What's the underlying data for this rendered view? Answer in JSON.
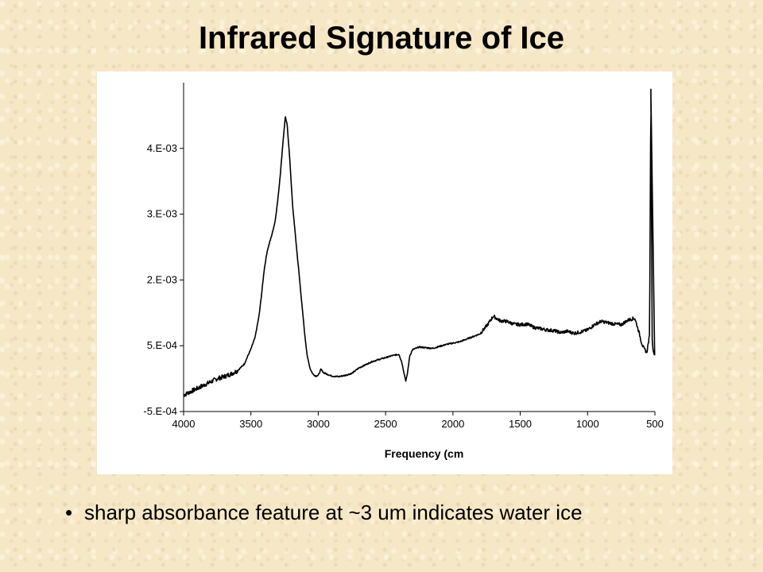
{
  "slide": {
    "title": "Infrared Signature of Ice",
    "bullet_marker": "•",
    "bullet_text": "sharp absorbance feature at ~3 um indicates water ice"
  },
  "chart_data": {
    "type": "line",
    "title": "",
    "xlabel": "Frequency (cm",
    "ylabel": "",
    "xlim": [
      4000,
      500
    ],
    "ylim": [
      -0.0005,
      0.0045
    ],
    "x_reversed": true,
    "grid": false,
    "legend": "none",
    "x_ticks": [
      4000,
      3500,
      3000,
      2500,
      2000,
      1500,
      1000,
      500
    ],
    "x_tick_labels": [
      "4000",
      "3500",
      "3000",
      "2500",
      "2000",
      "1500",
      "1000",
      "500"
    ],
    "y_ticks": [
      -0.0005,
      0.0005,
      0.0015,
      0.0025,
      0.0035
    ],
    "y_tick_labels": [
      "-5.E-04",
      "5.E-04",
      "2.E-03",
      "3.E-03",
      "4.E-03"
    ],
    "line_color": "#000000",
    "series": [
      {
        "x": [
          4000,
          3950,
          3900,
          3850,
          3800,
          3750,
          3700,
          3650,
          3600,
          3550,
          3500,
          3470,
          3440,
          3420,
          3400,
          3380,
          3360,
          3340,
          3320,
          3300,
          3280,
          3260,
          3245,
          3230,
          3210,
          3190,
          3170,
          3150,
          3120,
          3100,
          3080,
          3060,
          3040,
          3020,
          3000,
          2980,
          2960,
          2900,
          2850,
          2800,
          2750,
          2700,
          2650,
          2600,
          2550,
          2500,
          2450,
          2400,
          2380,
          2360,
          2350,
          2340,
          2320,
          2300,
          2250,
          2200,
          2150,
          2100,
          2050,
          2000,
          1950,
          1900,
          1850,
          1800,
          1750,
          1700,
          1650,
          1600,
          1550,
          1500,
          1450,
          1400,
          1350,
          1300,
          1250,
          1200,
          1150,
          1100,
          1050,
          1000,
          950,
          900,
          850,
          800,
          750,
          700,
          650,
          620,
          600,
          580,
          560,
          540,
          530,
          520,
          515,
          510,
          505,
          500
        ],
        "y": [
          -0.00025,
          -0.0002,
          -0.00015,
          -0.0001,
          -5e-05,
          0.0,
          3e-05,
          7e-05,
          0.00012,
          0.00022,
          0.00045,
          0.00062,
          0.00095,
          0.0013,
          0.00168,
          0.00193,
          0.00208,
          0.00222,
          0.0024,
          0.00272,
          0.00315,
          0.00364,
          0.00398,
          0.00385,
          0.00328,
          0.00262,
          0.00218,
          0.00175,
          0.0011,
          0.00066,
          0.00032,
          0.00015,
          7e-05,
          4e-05,
          5e-05,
          0.00014,
          9e-05,
          4e-05,
          3e-05,
          5e-05,
          8e-05,
          0.00016,
          0.00021,
          0.00026,
          0.00029,
          0.00032,
          0.00035,
          0.00037,
          0.00025,
          6e-05,
          -3e-05,
          5e-05,
          0.00035,
          0.00044,
          0.00048,
          0.00047,
          0.00046,
          0.00049,
          0.00052,
          0.00054,
          0.00056,
          0.0006,
          0.00064,
          0.00068,
          0.0008,
          0.00095,
          0.00088,
          0.00087,
          0.00083,
          0.00082,
          0.00083,
          0.00078,
          0.00076,
          0.00074,
          0.00073,
          0.0007,
          0.00072,
          0.00069,
          0.00071,
          0.00074,
          0.00082,
          0.00087,
          0.00085,
          0.00083,
          0.00082,
          0.00089,
          0.00092,
          0.00072,
          0.00055,
          0.00045,
          0.0004,
          0.00065,
          0.0044,
          0.0006,
          0.00045,
          0.0004,
          0.00038,
          0.00035
        ]
      }
    ]
  }
}
